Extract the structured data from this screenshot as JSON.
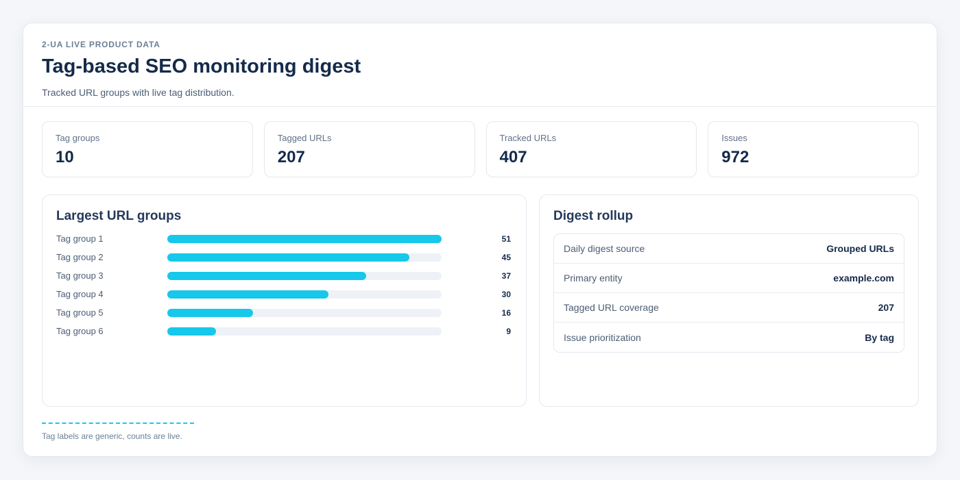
{
  "header": {
    "eyebrow": "2-UA LIVE PRODUCT DATA",
    "title": "Tag-based SEO monitoring digest",
    "subtitle": "Tracked URL groups with live tag distribution."
  },
  "stats": [
    {
      "label": "Tag groups",
      "value": "10"
    },
    {
      "label": "Tagged URLs",
      "value": "207"
    },
    {
      "label": "Tracked URLs",
      "value": "407"
    },
    {
      "label": "Issues",
      "value": "972"
    }
  ],
  "groups_panel": {
    "title": "Largest URL groups",
    "max": 51,
    "items": [
      {
        "label": "Tag group 1",
        "value": 51
      },
      {
        "label": "Tag group 2",
        "value": 45
      },
      {
        "label": "Tag group 3",
        "value": 37
      },
      {
        "label": "Tag group 4",
        "value": 30
      },
      {
        "label": "Tag group 5",
        "value": 16
      },
      {
        "label": "Tag group 6",
        "value": 9
      }
    ]
  },
  "rollup_panel": {
    "title": "Digest rollup",
    "rows": [
      {
        "key": "Daily digest source",
        "value": "Grouped URLs"
      },
      {
        "key": "Primary entity",
        "value": "example.com"
      },
      {
        "key": "Tagged URL coverage",
        "value": "207"
      },
      {
        "key": "Issue prioritization",
        "value": "By tag"
      }
    ]
  },
  "footnote": "Tag labels are generic, counts are live.",
  "colors": {
    "accent": "#16c8ea",
    "track": "#eef2f7",
    "text": "#142a4a"
  }
}
